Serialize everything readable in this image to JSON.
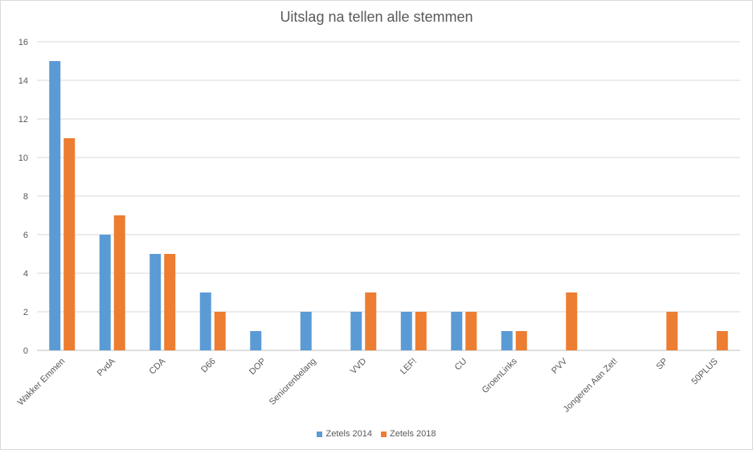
{
  "chart_data": {
    "type": "bar",
    "title": "Uitslag na tellen alle stemmen",
    "xlabel": "",
    "ylabel": "",
    "ylim": [
      0,
      16
    ],
    "yticks": [
      0,
      2,
      4,
      6,
      8,
      10,
      12,
      14,
      16
    ],
    "grid": true,
    "legend_position": "bottom",
    "categories": [
      "Wakker Emmen",
      "PvdA",
      "CDA",
      "D66",
      "DOP",
      "Seniorenbelang",
      "VVD",
      "LEF!",
      "CU",
      "GroenLinks",
      "PVV",
      "Jongeren Aan Zet!",
      "SP",
      "50PLUS"
    ],
    "series": [
      {
        "name": "Zetels 2014",
        "color": "#5b9bd5",
        "values": [
          15,
          6,
          5,
          3,
          1,
          2,
          2,
          2,
          2,
          1,
          0,
          0,
          0,
          0
        ]
      },
      {
        "name": "Zetels 2018",
        "color": "#ed7d31",
        "values": [
          11,
          7,
          5,
          2,
          0,
          0,
          3,
          2,
          2,
          1,
          3,
          0,
          2,
          1
        ]
      }
    ]
  }
}
